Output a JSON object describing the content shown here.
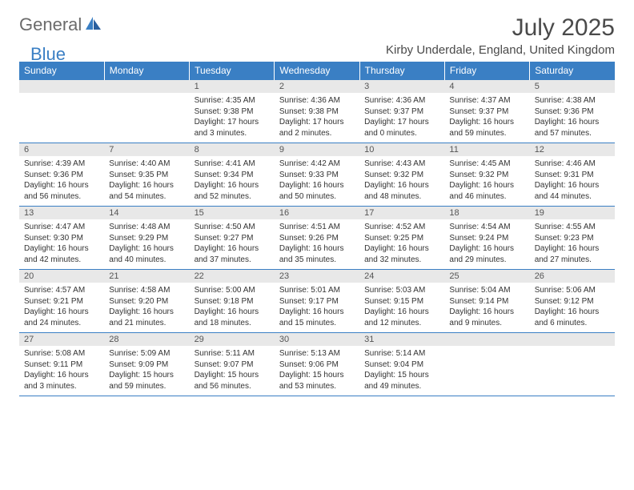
{
  "logo": {
    "text1": "General",
    "text2": "Blue"
  },
  "title": "July 2025",
  "location": "Kirby Underdale, England, United Kingdom",
  "colors": {
    "header_bg": "#3a7fc4",
    "header_text": "#ffffff",
    "daynum_bg": "#e8e8e8",
    "text": "#333333",
    "rule": "#3a7fc4"
  },
  "weekdays": [
    "Sunday",
    "Monday",
    "Tuesday",
    "Wednesday",
    "Thursday",
    "Friday",
    "Saturday"
  ],
  "first_day_index": 2,
  "days": [
    {
      "n": 1,
      "sunrise": "4:35 AM",
      "sunset": "9:38 PM",
      "daylight": "17 hours and 3 minutes."
    },
    {
      "n": 2,
      "sunrise": "4:36 AM",
      "sunset": "9:38 PM",
      "daylight": "17 hours and 2 minutes."
    },
    {
      "n": 3,
      "sunrise": "4:36 AM",
      "sunset": "9:37 PM",
      "daylight": "17 hours and 0 minutes."
    },
    {
      "n": 4,
      "sunrise": "4:37 AM",
      "sunset": "9:37 PM",
      "daylight": "16 hours and 59 minutes."
    },
    {
      "n": 5,
      "sunrise": "4:38 AM",
      "sunset": "9:36 PM",
      "daylight": "16 hours and 57 minutes."
    },
    {
      "n": 6,
      "sunrise": "4:39 AM",
      "sunset": "9:36 PM",
      "daylight": "16 hours and 56 minutes."
    },
    {
      "n": 7,
      "sunrise": "4:40 AM",
      "sunset": "9:35 PM",
      "daylight": "16 hours and 54 minutes."
    },
    {
      "n": 8,
      "sunrise": "4:41 AM",
      "sunset": "9:34 PM",
      "daylight": "16 hours and 52 minutes."
    },
    {
      "n": 9,
      "sunrise": "4:42 AM",
      "sunset": "9:33 PM",
      "daylight": "16 hours and 50 minutes."
    },
    {
      "n": 10,
      "sunrise": "4:43 AM",
      "sunset": "9:32 PM",
      "daylight": "16 hours and 48 minutes."
    },
    {
      "n": 11,
      "sunrise": "4:45 AM",
      "sunset": "9:32 PM",
      "daylight": "16 hours and 46 minutes."
    },
    {
      "n": 12,
      "sunrise": "4:46 AM",
      "sunset": "9:31 PM",
      "daylight": "16 hours and 44 minutes."
    },
    {
      "n": 13,
      "sunrise": "4:47 AM",
      "sunset": "9:30 PM",
      "daylight": "16 hours and 42 minutes."
    },
    {
      "n": 14,
      "sunrise": "4:48 AM",
      "sunset": "9:29 PM",
      "daylight": "16 hours and 40 minutes."
    },
    {
      "n": 15,
      "sunrise": "4:50 AM",
      "sunset": "9:27 PM",
      "daylight": "16 hours and 37 minutes."
    },
    {
      "n": 16,
      "sunrise": "4:51 AM",
      "sunset": "9:26 PM",
      "daylight": "16 hours and 35 minutes."
    },
    {
      "n": 17,
      "sunrise": "4:52 AM",
      "sunset": "9:25 PM",
      "daylight": "16 hours and 32 minutes."
    },
    {
      "n": 18,
      "sunrise": "4:54 AM",
      "sunset": "9:24 PM",
      "daylight": "16 hours and 29 minutes."
    },
    {
      "n": 19,
      "sunrise": "4:55 AM",
      "sunset": "9:23 PM",
      "daylight": "16 hours and 27 minutes."
    },
    {
      "n": 20,
      "sunrise": "4:57 AM",
      "sunset": "9:21 PM",
      "daylight": "16 hours and 24 minutes."
    },
    {
      "n": 21,
      "sunrise": "4:58 AM",
      "sunset": "9:20 PM",
      "daylight": "16 hours and 21 minutes."
    },
    {
      "n": 22,
      "sunrise": "5:00 AM",
      "sunset": "9:18 PM",
      "daylight": "16 hours and 18 minutes."
    },
    {
      "n": 23,
      "sunrise": "5:01 AM",
      "sunset": "9:17 PM",
      "daylight": "16 hours and 15 minutes."
    },
    {
      "n": 24,
      "sunrise": "5:03 AM",
      "sunset": "9:15 PM",
      "daylight": "16 hours and 12 minutes."
    },
    {
      "n": 25,
      "sunrise": "5:04 AM",
      "sunset": "9:14 PM",
      "daylight": "16 hours and 9 minutes."
    },
    {
      "n": 26,
      "sunrise": "5:06 AM",
      "sunset": "9:12 PM",
      "daylight": "16 hours and 6 minutes."
    },
    {
      "n": 27,
      "sunrise": "5:08 AM",
      "sunset": "9:11 PM",
      "daylight": "16 hours and 3 minutes."
    },
    {
      "n": 28,
      "sunrise": "5:09 AM",
      "sunset": "9:09 PM",
      "daylight": "15 hours and 59 minutes."
    },
    {
      "n": 29,
      "sunrise": "5:11 AM",
      "sunset": "9:07 PM",
      "daylight": "15 hours and 56 minutes."
    },
    {
      "n": 30,
      "sunrise": "5:13 AM",
      "sunset": "9:06 PM",
      "daylight": "15 hours and 53 minutes."
    },
    {
      "n": 31,
      "sunrise": "5:14 AM",
      "sunset": "9:04 PM",
      "daylight": "15 hours and 49 minutes."
    }
  ]
}
